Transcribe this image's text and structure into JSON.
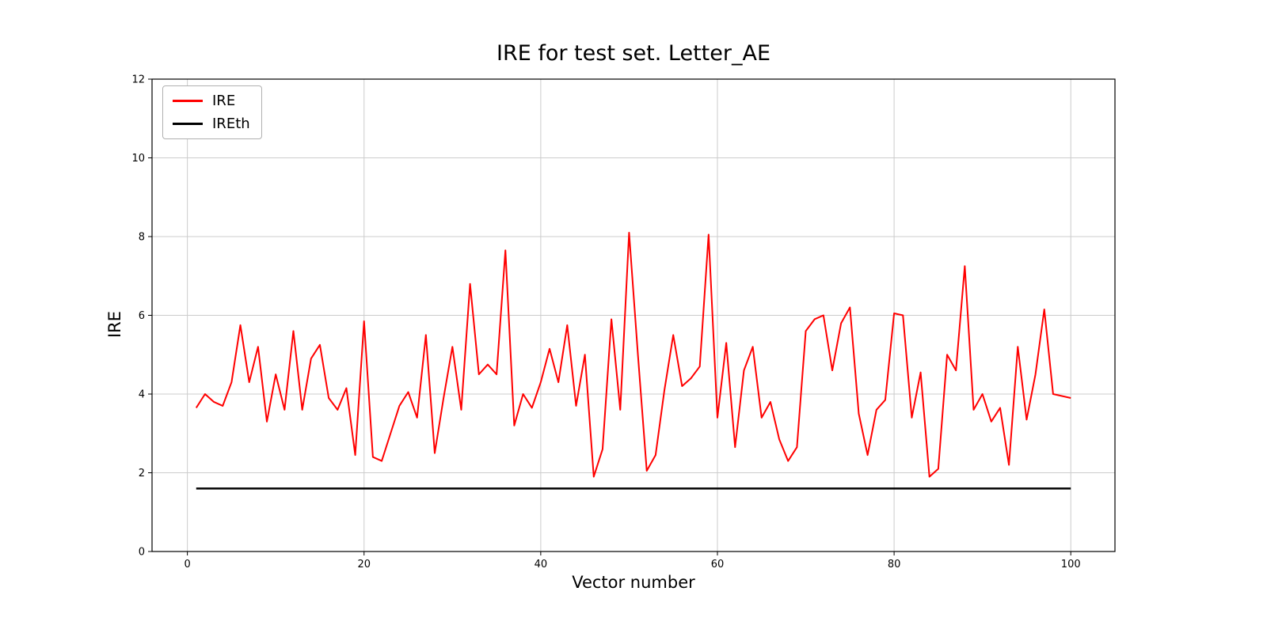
{
  "figure": {
    "title": "IRE for test set. Letter_AE",
    "xlabel": "Vector number",
    "ylabel": "IRE"
  },
  "chart_data": {
    "type": "line",
    "title": "IRE for test set. Letter_AE",
    "xlabel": "Vector number",
    "ylabel": "IRE",
    "xlim": [
      -4,
      105
    ],
    "ylim": [
      0,
      12
    ],
    "xticks": [
      0,
      20,
      40,
      60,
      80,
      100
    ],
    "yticks": [
      0,
      2,
      4,
      6,
      8,
      10,
      12
    ],
    "grid": true,
    "legend_position": "upper-left",
    "x_start": 1,
    "series": [
      {
        "name": "IRE",
        "color": "#ff0000",
        "line_width": 2,
        "values": [
          3.65,
          4.0,
          3.8,
          3.7,
          4.3,
          5.75,
          4.3,
          5.2,
          3.3,
          4.5,
          3.6,
          5.6,
          3.6,
          4.9,
          5.25,
          3.9,
          3.6,
          4.15,
          2.45,
          5.85,
          2.4,
          2.3,
          3.0,
          3.7,
          4.05,
          3.4,
          5.5,
          2.5,
          3.9,
          5.2,
          3.6,
          6.8,
          4.5,
          4.75,
          4.5,
          7.65,
          3.2,
          4.0,
          3.65,
          4.3,
          5.15,
          4.3,
          5.75,
          3.7,
          5.0,
          1.9,
          2.6,
          5.9,
          3.6,
          8.1,
          5.0,
          2.05,
          2.45,
          4.1,
          5.5,
          4.2,
          4.4,
          4.7,
          8.05,
          3.4,
          5.3,
          2.65,
          4.6,
          5.2,
          3.4,
          3.8,
          2.85,
          2.3,
          2.65,
          5.6,
          5.9,
          6.0,
          4.6,
          5.8,
          6.2,
          3.5,
          2.45,
          3.6,
          3.85,
          6.05,
          6.0,
          3.4,
          4.55,
          1.9,
          2.1,
          5.0,
          4.6,
          7.25,
          3.6,
          4.0,
          3.3,
          3.65,
          2.2,
          5.2,
          3.35,
          4.5,
          6.15,
          4.0,
          3.95,
          3.9
        ]
      },
      {
        "name": "IREth",
        "color": "#000000",
        "line_width": 2.5,
        "constant": 1.6,
        "x_range": [
          1,
          100
        ]
      }
    ]
  },
  "style": {
    "grid_color": "#cccccc",
    "axis_color": "#000000",
    "tick_font_size": 13
  }
}
